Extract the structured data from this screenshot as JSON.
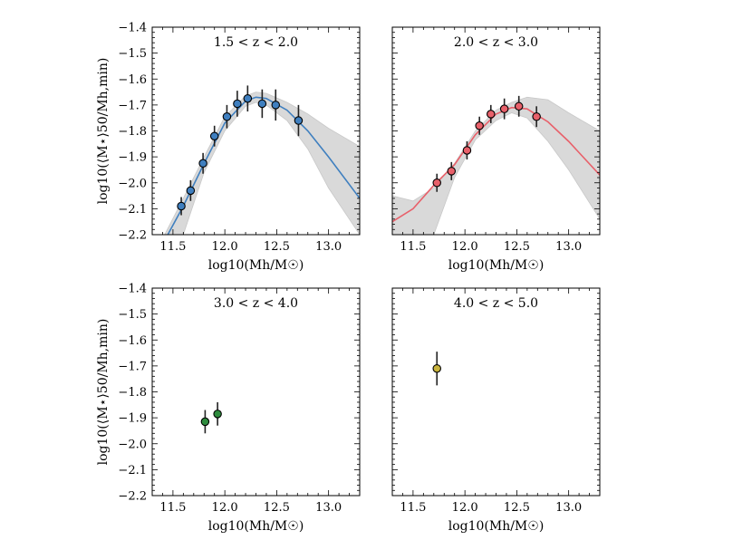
{
  "chart_data": [
    {
      "type": "scatter",
      "title": "1.5 < z < 2.0",
      "xlabel": "log10(Mh/M☉)",
      "ylabel": "log10(⟨M⋆⟩50/Mh,min)",
      "xlim": [
        11.3,
        13.3
      ],
      "ylim": [
        -2.2,
        -1.4
      ],
      "xticks": [
        "11.5",
        "12.0",
        "12.5",
        "13.0"
      ],
      "yticks": [
        "−1.4",
        "−1.5",
        "−1.6",
        "−1.7",
        "−1.8",
        "−1.9",
        "−2.0",
        "−2.1",
        "−2.2"
      ],
      "color": "#3f7fbf",
      "points": [
        {
          "x": 11.58,
          "y": -2.09,
          "err": 0.035
        },
        {
          "x": 11.67,
          "y": -2.03,
          "err": 0.04
        },
        {
          "x": 11.79,
          "y": -1.925,
          "err": 0.04
        },
        {
          "x": 11.9,
          "y": -1.82,
          "err": 0.04
        },
        {
          "x": 12.02,
          "y": -1.745,
          "err": 0.045
        },
        {
          "x": 12.12,
          "y": -1.695,
          "err": 0.05
        },
        {
          "x": 12.22,
          "y": -1.675,
          "err": 0.05
        },
        {
          "x": 12.36,
          "y": -1.695,
          "err": 0.055
        },
        {
          "x": 12.49,
          "y": -1.7,
          "err": 0.06
        },
        {
          "x": 12.71,
          "y": -1.76,
          "err": 0.06
        }
      ],
      "fit": {
        "x": [
          11.45,
          11.6,
          11.8,
          12.0,
          12.2,
          12.3,
          12.4,
          12.6,
          12.8,
          13.0,
          13.3
        ],
        "y": [
          -2.2,
          -2.09,
          -1.925,
          -1.77,
          -1.685,
          -1.67,
          -1.675,
          -1.72,
          -1.8,
          -1.9,
          -2.06
        ]
      },
      "band": {
        "x": [
          11.42,
          11.6,
          11.8,
          12.0,
          12.2,
          12.3,
          12.4,
          12.6,
          12.8,
          13.0,
          13.3
        ],
        "upper": [
          -2.2,
          -2.06,
          -1.9,
          -1.745,
          -1.665,
          -1.65,
          -1.655,
          -1.69,
          -1.735,
          -1.79,
          -1.86
        ],
        "lower": [
          -2.2,
          -2.2,
          -1.96,
          -1.8,
          -1.705,
          -1.69,
          -1.7,
          -1.76,
          -1.87,
          -2.02,
          -2.2
        ]
      }
    },
    {
      "type": "scatter",
      "title": "2.0 < z < 3.0",
      "xlabel": "log10(Mh/M☉)",
      "ylabel": "",
      "xlim": [
        11.3,
        13.3
      ],
      "ylim": [
        -2.2,
        -1.4
      ],
      "xticks": [
        "11.5",
        "12.0",
        "12.5",
        "13.0"
      ],
      "yticks": [],
      "color": "#e8606a",
      "points": [
        {
          "x": 11.73,
          "y": -2.0,
          "err": 0.035
        },
        {
          "x": 11.87,
          "y": -1.955,
          "err": 0.035
        },
        {
          "x": 12.02,
          "y": -1.875,
          "err": 0.035
        },
        {
          "x": 12.14,
          "y": -1.78,
          "err": 0.035
        },
        {
          "x": 12.25,
          "y": -1.735,
          "err": 0.035
        },
        {
          "x": 12.38,
          "y": -1.715,
          "err": 0.04
        },
        {
          "x": 12.52,
          "y": -1.705,
          "err": 0.04
        },
        {
          "x": 12.69,
          "y": -1.745,
          "err": 0.04
        }
      ],
      "fit": {
        "x": [
          11.3,
          11.5,
          11.7,
          11.9,
          12.1,
          12.3,
          12.45,
          12.6,
          12.8,
          13.0,
          13.3
        ],
        "y": [
          -2.15,
          -2.1,
          -2.01,
          -1.93,
          -1.815,
          -1.735,
          -1.71,
          -1.715,
          -1.765,
          -1.84,
          -1.97
        ]
      },
      "band": {
        "x": [
          11.3,
          11.5,
          11.7,
          11.9,
          12.1,
          12.3,
          12.45,
          12.6,
          12.8,
          13.0,
          13.3
        ],
        "upper": [
          -2.05,
          -2.07,
          -2.02,
          -1.925,
          -1.8,
          -1.72,
          -1.69,
          -1.67,
          -1.68,
          -1.73,
          -1.8
        ],
        "lower": [
          -2.2,
          -2.2,
          -2.2,
          -1.98,
          -1.835,
          -1.76,
          -1.73,
          -1.75,
          -1.84,
          -1.95,
          -2.14
        ]
      }
    },
    {
      "type": "scatter",
      "title": "3.0 < z < 4.0",
      "xlabel": "log10(Mh/M☉)",
      "ylabel": "log10(⟨M⋆⟩50/Mh,min)",
      "xlim": [
        11.3,
        13.3
      ],
      "ylim": [
        -2.2,
        -1.4
      ],
      "xticks": [
        "11.5",
        "12.0",
        "12.5",
        "13.0"
      ],
      "yticks": [
        "−1.4",
        "−1.5",
        "−1.6",
        "−1.7",
        "−1.8",
        "−1.9",
        "−2.0",
        "−2.1",
        "−2.2"
      ],
      "color": "#2e8b3d",
      "points": [
        {
          "x": 11.81,
          "y": -1.915,
          "err": 0.045
        },
        {
          "x": 11.93,
          "y": -1.885,
          "err": 0.045
        }
      ]
    },
    {
      "type": "scatter",
      "title": "4.0 < z < 5.0",
      "xlabel": "log10(Mh/M☉)",
      "ylabel": "",
      "xlim": [
        11.3,
        13.3
      ],
      "ylim": [
        -2.2,
        -1.4
      ],
      "xticks": [
        "11.5",
        "12.0",
        "12.5",
        "13.0"
      ],
      "yticks": [],
      "color": "#c8b33c",
      "points": [
        {
          "x": 11.73,
          "y": -1.71,
          "err": 0.065
        }
      ]
    }
  ],
  "colors": {
    "band": "#d9d9d9",
    "errorbar": "#222222",
    "marker_edge": "#000000"
  }
}
